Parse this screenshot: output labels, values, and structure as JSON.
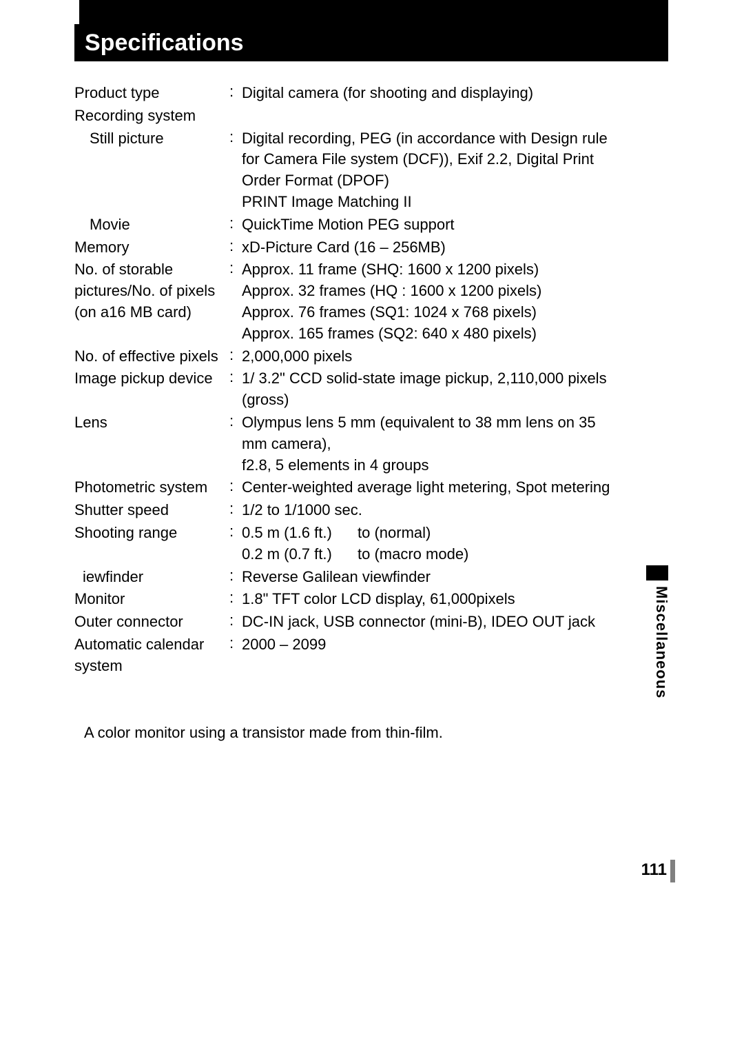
{
  "title": "Specifications",
  "sideTab": "Miscellaneous",
  "pageNumber": "111",
  "footnote": "A color monitor using a transistor made from thin-film.",
  "specs": {
    "productType": {
      "label": "Product type",
      "value": "Digital camera (for shooting and displaying)"
    },
    "recordingSystem": {
      "label": "Recording system"
    },
    "stillPicture": {
      "label": "Still picture",
      "value1": "Digital recording,   PEG (in accordance with Design rule for Camera File system (DCF)), Exif 2.2, Digital Print Order Format (DPOF)",
      "value2": "PRINT Image Matching II"
    },
    "movie": {
      "label": "Movie",
      "value": "QuickTime Motion   PEG support"
    },
    "memory": {
      "label": "Memory",
      "value": "xD-Picture Card (16 – 256MB)"
    },
    "storable": {
      "label": "No. of storable pictures/No. of pixels (on a16 MB card)",
      "value1": "Approx. 11 frame (SHQ: 1600 x 1200 pixels)",
      "value2": "Approx. 32 frames (HQ : 1600 x 1200 pixels)",
      "value3": "Approx. 76 frames (SQ1: 1024 x 768 pixels)",
      "value4": "Approx. 165 frames (SQ2: 640 x 480 pixels)"
    },
    "effectivePixels": {
      "label": "No. of effective pixels",
      "value": "2,000,000 pixels"
    },
    "imagePickup": {
      "label": "Image pickup device",
      "value": "1/ 3.2\" CCD solid-state image pickup, 2,110,000 pixels (gross)"
    },
    "lens": {
      "label": "Lens",
      "value1": "Olympus lens 5 mm  (equivalent to 38 mm lens on 35 mm camera),",
      "value2": "f2.8, 5 elements in 4 groups"
    },
    "photometric": {
      "label": "Photometric system",
      "value": "Center-weighted average light metering, Spot metering"
    },
    "shutterSpeed": {
      "label": "Shutter speed",
      "value": "1/2 to 1/1000 sec."
    },
    "shootingRange": {
      "label": "Shooting range",
      "value1a": "0.5 m (1.6 ft.)",
      "value1b": "to (normal)",
      "value2a": "0.2 m (0.7 ft.)",
      "value2b": "to (macro mode)"
    },
    "viewfinder": {
      "label": "iewfinder",
      "value": "Reverse Galilean viewfinder"
    },
    "monitor": {
      "label": "Monitor",
      "value": "1.8\" TFT  color LCD display, 61,000pixels"
    },
    "outerConnector": {
      "label": "Outer connector",
      "value": "DC-IN jack, USB connector (mini-B),   IDEO OUT jack"
    },
    "calendar": {
      "label": "Automatic calendar system",
      "value": "2000 – 2099"
    }
  }
}
